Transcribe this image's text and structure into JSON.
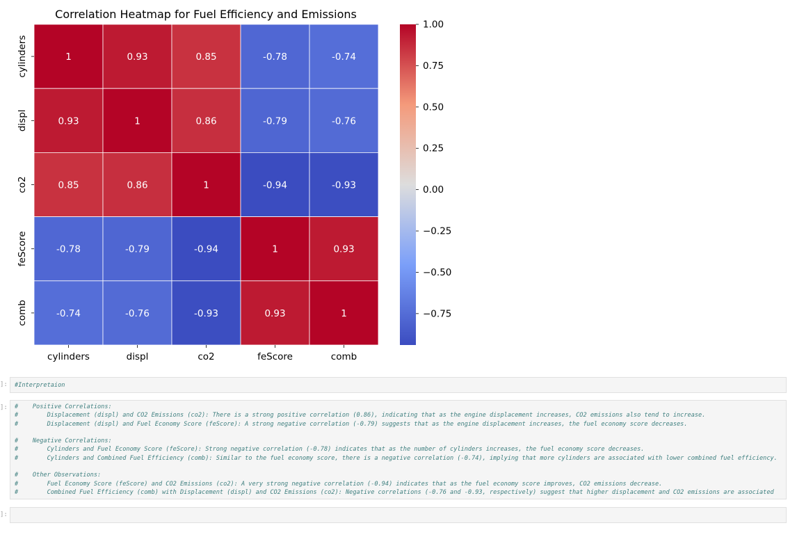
{
  "chart_data": {
    "type": "heatmap",
    "title": "Correlation Heatmap for Fuel Efficiency and Emissions",
    "x_labels": [
      "cylinders",
      "displ",
      "co2",
      "feScore",
      "comb"
    ],
    "y_labels": [
      "cylinders",
      "displ",
      "co2",
      "feScore",
      "comb"
    ],
    "values": [
      [
        1,
        0.93,
        0.85,
        -0.78,
        -0.74
      ],
      [
        0.93,
        1,
        0.86,
        -0.79,
        -0.76
      ],
      [
        0.85,
        0.86,
        1,
        -0.94,
        -0.93
      ],
      [
        -0.78,
        -0.79,
        -0.94,
        1,
        0.93
      ],
      [
        -0.74,
        -0.76,
        -0.93,
        0.93,
        1
      ]
    ],
    "annotations": [
      [
        "1",
        "0.93",
        "0.85",
        "-0.78",
        "-0.74"
      ],
      [
        "0.93",
        "1",
        "0.86",
        "-0.79",
        "-0.76"
      ],
      [
        "0.85",
        "0.86",
        "1",
        "-0.94",
        "-0.93"
      ],
      [
        "-0.78",
        "-0.79",
        "-0.94",
        "1",
        "0.93"
      ],
      [
        "-0.74",
        "-0.76",
        "-0.93",
        "0.93",
        "1"
      ]
    ],
    "colormap": "coolwarm",
    "vmin": -0.94,
    "vmax": 1.0,
    "colorbar_ticks": [
      1.0,
      0.75,
      0.5,
      0.25,
      0.0,
      -0.25,
      -0.5,
      -0.75
    ],
    "colorbar_tick_labels": [
      "1.00",
      "0.75",
      "0.50",
      "0.25",
      "0.00",
      "−0.25",
      "−0.50",
      "−0.75"
    ],
    "colorbar_position": "right",
    "grid": false
  },
  "notebook": {
    "cells": [
      {
        "prompt": "]:",
        "lines": [
          "#Interpretaion"
        ]
      },
      {
        "prompt": "]:",
        "lines": [
          "#    Positive Correlations:",
          "#        Displacement (displ) and CO2 Emissions (co2): There is a strong positive correlation (0.86), indicating that as the engine displacement increases, CO2 emissions also tend to increase.",
          "#        Displacement (displ) and Fuel Economy Score (feScore): A strong negative correlation (-0.79) suggests that as the engine displacement increases, the fuel economy score decreases.",
          "",
          "#    Negative Correlations:",
          "#        Cylinders and Fuel Economy Score (feScore): Strong negative correlation (-0.78) indicates that as the number of cylinders increases, the fuel economy score decreases.",
          "#        Cylinders and Combined Fuel Efficiency (comb): Similar to the fuel economy score, there is a negative correlation (-0.74), implying that more cylinders are associated with lower combined fuel efficiency.",
          "",
          "#    Other Observations:",
          "#        Fuel Economy Score (feScore) and CO2 Emissions (co2): A very strong negative correlation (-0.94) indicates that as the fuel economy score improves, CO2 emissions decrease.",
          "#        Combined Fuel Efficiency (comb) with Displacement (displ) and CO2 Emissions (co2): Negative correlations (-0.76 and -0.93, respectively) suggest that higher displacement and CO2 emissions are associated"
        ]
      },
      {
        "prompt": "]:",
        "lines": []
      }
    ]
  }
}
